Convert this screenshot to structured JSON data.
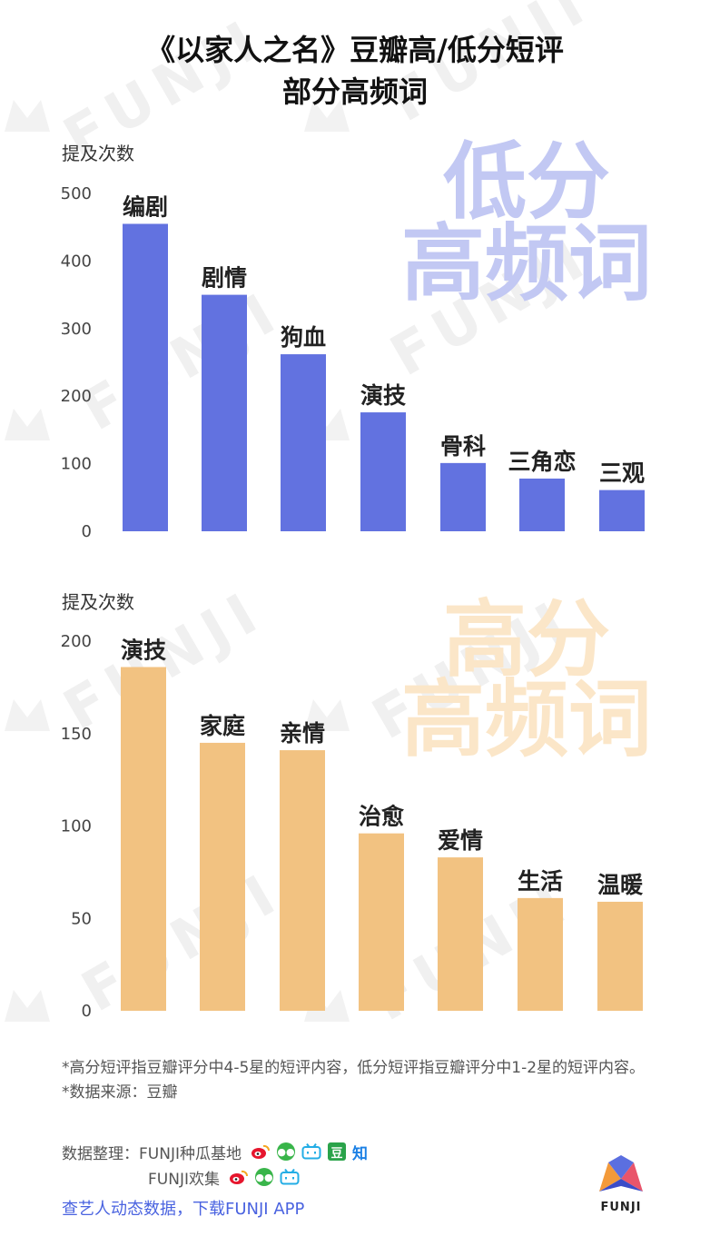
{
  "title": {
    "line1": "《以家人之名》豆瓣高/低分短评",
    "line2": "部分高频词"
  },
  "chart_data": [
    {
      "type": "bar",
      "ylabel": "提及次数",
      "ylim": [
        0,
        500
      ],
      "yticks": [
        0,
        100,
        200,
        300,
        400,
        500
      ],
      "categories": [
        "编剧",
        "剧情",
        "狗血",
        "演技",
        "骨科",
        "三角恋",
        "三观"
      ],
      "values": [
        455,
        350,
        262,
        176,
        101,
        78,
        61
      ],
      "annotation": [
        "低分",
        "高频词"
      ],
      "bar_color": "#6272e0",
      "annotation_color": "#c2c8f3"
    },
    {
      "type": "bar",
      "ylabel": "提及次数",
      "ylim": [
        0,
        200
      ],
      "yticks": [
        0,
        50,
        100,
        150,
        200
      ],
      "categories": [
        "演技",
        "家庭",
        "亲情",
        "治愈",
        "爱情",
        "生活",
        "温暖"
      ],
      "values": [
        186,
        145,
        141,
        96,
        83,
        61,
        59
      ],
      "annotation": [
        "高分",
        "高频词"
      ],
      "bar_color": "#f2c281",
      "annotation_color": "#fbe6c8"
    }
  ],
  "notes": {
    "line1": "*高分短评指豆瓣评分中4-5星的短评内容，低分短评指豆瓣评分中1-2星的短评内容。",
    "line2": "*数据来源：豆瓣"
  },
  "credits": {
    "label": "数据整理：",
    "account1": "FUNJI种瓜基地",
    "account2": "FUNJI欢集",
    "icons1": [
      "weibo-icon",
      "wechat-icon",
      "bilibili-icon",
      "douban-icon",
      "zhihu-icon"
    ],
    "icons2": [
      "weibo-icon",
      "wechat-icon",
      "bilibili-icon"
    ],
    "douban_glyph": "豆",
    "zhihu_glyph": "知"
  },
  "cta": "查艺人动态数据，下载FUNJI APP",
  "brand": {
    "name": "FUNJI",
    "watermark": "FUNJI"
  }
}
